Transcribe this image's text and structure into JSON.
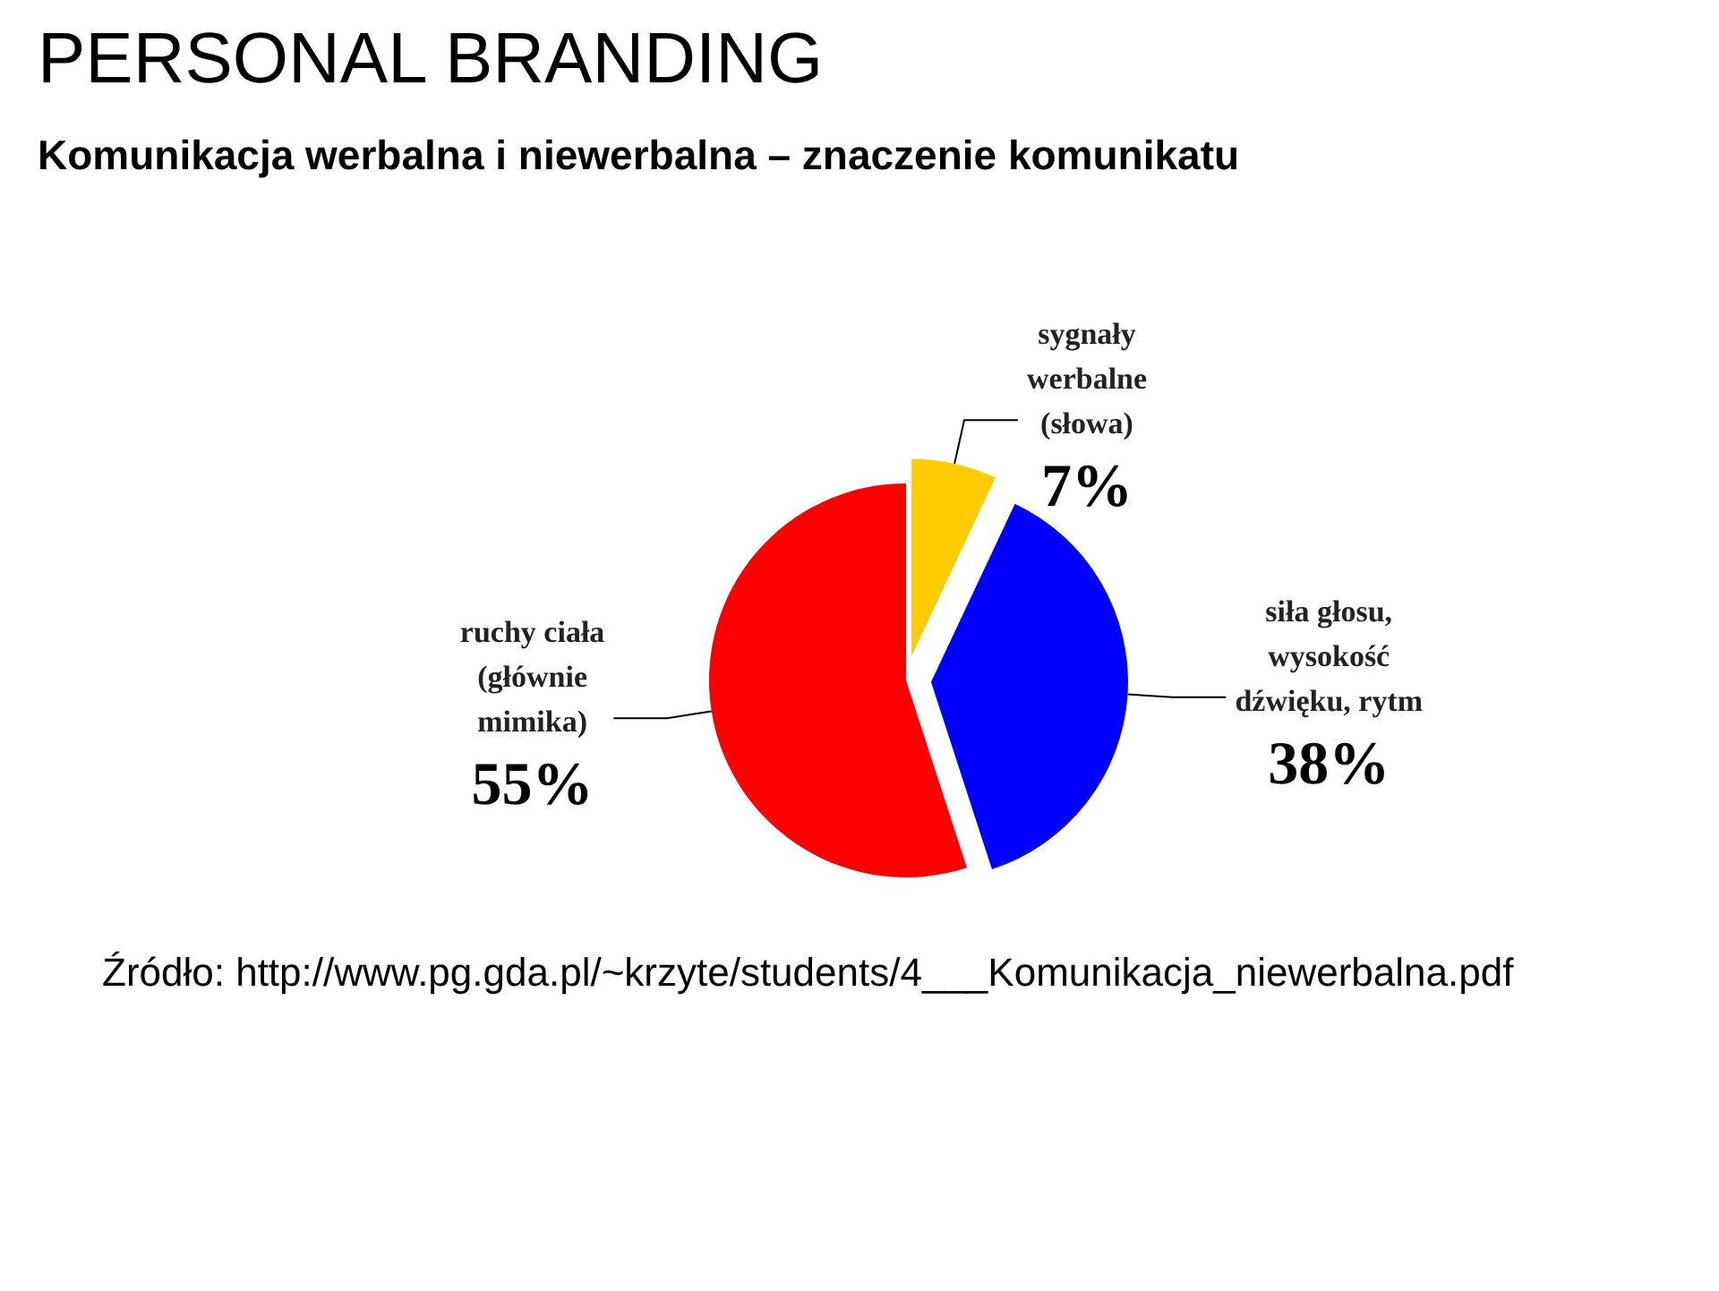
{
  "chart_data": {
    "type": "pie",
    "title": "PERSONAL BRANDING",
    "subtitle": "Komunikacja werbalna i niewerbalna – znaczenie komunikatu",
    "categories": [
      "sygnały werbalne (słowa)",
      "siła głosu, wysokość dźwięku, rytm",
      "ruchy ciała (głównie mimika)"
    ],
    "values": [
      7,
      38,
      55
    ],
    "colors": [
      "#ffcc00",
      "#0000ff",
      "#ff0000"
    ],
    "value_labels": [
      "7%",
      "38%",
      "55%"
    ],
    "annotations": [
      "Źródło: http://www.pg.gda.pl/~krzyte/students/4___Komunikacja_niewerbalna.pdf"
    ]
  }
}
